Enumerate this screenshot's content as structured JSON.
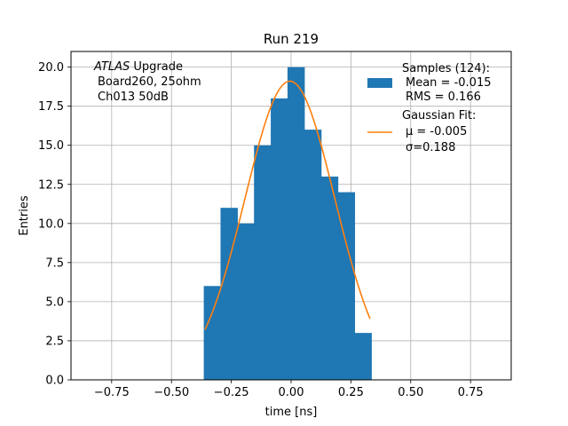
{
  "chart_data": {
    "type": "bar",
    "title": "Run 219",
    "xlabel": "time [ns]",
    "ylabel": "Entries",
    "xlim": [
      -0.92,
      0.92
    ],
    "ylim": [
      0,
      21
    ],
    "xticks": [
      -0.75,
      -0.5,
      -0.25,
      0.0,
      0.25,
      0.5,
      0.75
    ],
    "xtick_labels": [
      "−0.75",
      "−0.50",
      "−0.25",
      "0.00",
      "0.25",
      "0.50",
      "0.75"
    ],
    "yticks": [
      0,
      2.5,
      5,
      7.5,
      10,
      12.5,
      15,
      17.5,
      20
    ],
    "ytick_labels": [
      "0.0",
      "2.5",
      "5.0",
      "7.5",
      "10.0",
      "12.5",
      "15.0",
      "17.5",
      "20.0"
    ],
    "grid": true,
    "histogram": {
      "color": "#1f77b4",
      "bin_edges": [
        -0.365,
        -0.295,
        -0.225,
        -0.155,
        -0.085,
        -0.015,
        0.055,
        0.125,
        0.195,
        0.265,
        0.335
      ],
      "counts": [
        6,
        11,
        10,
        15,
        18,
        20,
        16,
        13,
        12,
        3
      ]
    },
    "gaussian_fit": {
      "color": "#ff7f0e",
      "amplitude": 19.1,
      "mu": -0.005,
      "sigma": 0.188,
      "x_range": [
        -0.36,
        0.33
      ]
    },
    "annotation": {
      "line1_italic": "ATLAS",
      "line1_rest": " Upgrade",
      "line2": "Board260, 25ohm",
      "line3": "Ch013 50dB"
    },
    "legend": {
      "placement": "upper right",
      "entries": [
        {
          "kind": "patch",
          "color": "#1f77b4",
          "lines": [
            "Samples (124):",
            "Mean = -0.015",
            "RMS = 0.166"
          ]
        },
        {
          "kind": "line",
          "color": "#ff7f0e",
          "lines": [
            "Gaussian Fit:",
            "μ = -0.005",
            "σ=0.188"
          ]
        }
      ]
    }
  }
}
